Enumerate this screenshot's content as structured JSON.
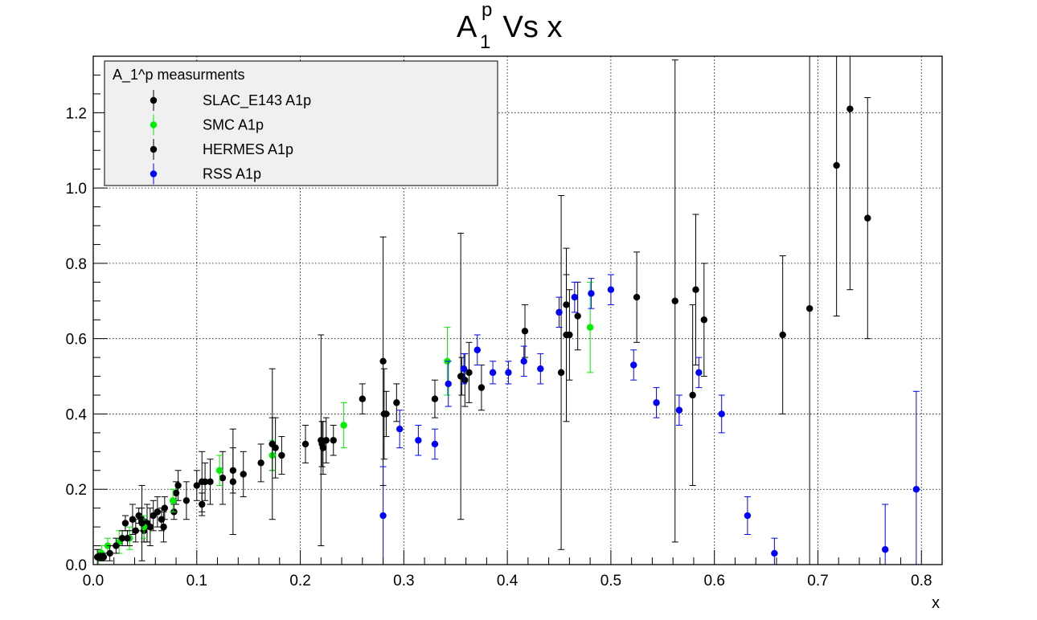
{
  "chart_data": {
    "type": "scatter",
    "title": {
      "base": "A",
      "sup": "p",
      "sub": "1",
      "rest": " Vs x"
    },
    "xlabel": "x",
    "ylabel": "",
    "xlim": [
      0.0,
      0.82
    ],
    "ylim": [
      0.0,
      1.35
    ],
    "x_ticks": [
      0.0,
      0.1,
      0.2,
      0.3,
      0.4,
      0.5,
      0.6,
      0.7,
      0.8
    ],
    "y_ticks": [
      0.0,
      0.2,
      0.4,
      0.6,
      0.8,
      1.0,
      1.2
    ],
    "x_tick_labels": [
      "0.0",
      "0.1",
      "0.2",
      "0.3",
      "0.4",
      "0.5",
      "0.6",
      "0.7",
      "0.8"
    ],
    "y_tick_labels": [
      "0.0",
      "0.2",
      "0.4",
      "0.6",
      "0.8",
      "1.0",
      "1.2"
    ],
    "grid": true,
    "legend": {
      "title": "A_1^p measurments",
      "position": "top-left"
    },
    "series": [
      {
        "name": "SLAC_E143 A1p",
        "color": "#000000",
        "points": [
          [
            0.031,
            0.11,
            0.02
          ],
          [
            0.035,
            0.07,
            0.02
          ],
          [
            0.038,
            0.12,
            0.04
          ],
          [
            0.041,
            0.09,
            0.03
          ],
          [
            0.044,
            0.13,
            0.02
          ],
          [
            0.047,
            0.12,
            0.03
          ],
          [
            0.049,
            0.09,
            0.03
          ],
          [
            0.052,
            0.11,
            0.05
          ],
          [
            0.055,
            0.1,
            0.05
          ],
          [
            0.058,
            0.13,
            0.04
          ],
          [
            0.062,
            0.14,
            0.04
          ],
          [
            0.066,
            0.12,
            0.03
          ],
          [
            0.069,
            0.15,
            0.03
          ],
          [
            0.078,
            0.14,
            0.02
          ],
          [
            0.08,
            0.19,
            0.03
          ],
          [
            0.082,
            0.21,
            0.04
          ],
          [
            0.09,
            0.17,
            0.05
          ],
          [
            0.1,
            0.21,
            0.04
          ],
          [
            0.105,
            0.16,
            0.03
          ],
          [
            0.108,
            0.22,
            0.05
          ],
          [
            0.113,
            0.22,
            0.06
          ],
          [
            0.125,
            0.23,
            0.07
          ],
          [
            0.135,
            0.25,
            0.06
          ],
          [
            0.145,
            0.24,
            0.06
          ],
          [
            0.162,
            0.27,
            0.05
          ],
          [
            0.173,
            0.32,
            0.07
          ],
          [
            0.176,
            0.31,
            0.08
          ],
          [
            0.182,
            0.29,
            0.05
          ],
          [
            0.205,
            0.32,
            0.05
          ],
          [
            0.221,
            0.32,
            0.06
          ],
          [
            0.225,
            0.33,
            0.06
          ],
          [
            0.232,
            0.33,
            0.04
          ],
          [
            0.26,
            0.44,
            0.04
          ],
          [
            0.283,
            0.4,
            0.06
          ],
          [
            0.293,
            0.43,
            0.05
          ],
          [
            0.33,
            0.44,
            0.05
          ],
          [
            0.356,
            0.5,
            0.05
          ],
          [
            0.359,
            0.49,
            0.07
          ],
          [
            0.363,
            0.51,
            0.08
          ],
          [
            0.375,
            0.47,
            0.06
          ],
          [
            0.417,
            0.62,
            0.07
          ],
          [
            0.457,
            0.69,
            0.08
          ],
          [
            0.46,
            0.61,
            0.12
          ],
          [
            0.468,
            0.66,
            0.09
          ],
          [
            0.525,
            0.71,
            0.12
          ],
          [
            0.59,
            0.65,
            0.15
          ]
        ]
      },
      {
        "name": "SMC A1p",
        "color": "#00ee00",
        "points": [
          [
            0.005,
            0.02,
            0.02
          ],
          [
            0.008,
            0.03,
            0.02
          ],
          [
            0.014,
            0.05,
            0.02
          ],
          [
            0.025,
            0.06,
            0.03
          ],
          [
            0.035,
            0.07,
            0.03
          ],
          [
            0.049,
            0.1,
            0.03
          ],
          [
            0.077,
            0.17,
            0.03
          ],
          [
            0.122,
            0.25,
            0.04
          ],
          [
            0.173,
            0.29,
            0.04
          ],
          [
            0.242,
            0.37,
            0.06
          ],
          [
            0.342,
            0.54,
            0.09
          ],
          [
            0.48,
            0.63,
            0.12
          ]
        ]
      },
      {
        "name": "HERMES A1p",
        "color": "#000000",
        "points": [
          [
            0.004,
            0.02,
            0.02
          ],
          [
            0.007,
            0.02,
            0.01
          ],
          [
            0.01,
            0.02,
            0.01
          ],
          [
            0.016,
            0.03,
            0.02
          ],
          [
            0.022,
            0.05,
            0.02
          ],
          [
            0.028,
            0.07,
            0.02
          ],
          [
            0.033,
            0.07,
            0.02
          ],
          [
            0.047,
            0.11,
            0.1
          ],
          [
            0.068,
            0.1,
            0.04
          ],
          [
            0.105,
            0.22,
            0.08
          ],
          [
            0.135,
            0.22,
            0.14
          ],
          [
            0.173,
            0.32,
            0.2
          ],
          [
            0.22,
            0.33,
            0.28
          ],
          [
            0.222,
            0.31,
            0.07
          ],
          [
            0.28,
            0.54,
            0.33
          ],
          [
            0.281,
            0.4,
            0.12
          ],
          [
            0.355,
            0.5,
            0.38
          ],
          [
            0.452,
            0.51,
            0.47
          ],
          [
            0.457,
            0.61,
            0.23
          ],
          [
            0.562,
            0.7,
            0.64
          ],
          [
            0.579,
            0.45,
            0.24
          ],
          [
            0.582,
            0.73,
            0.2
          ],
          [
            0.666,
            0.61,
            0.21
          ],
          [
            0.692,
            0.68,
            0.7
          ],
          [
            0.718,
            1.06,
            0.4
          ],
          [
            0.731,
            1.21,
            0.48
          ],
          [
            0.748,
            0.92,
            0.32
          ]
        ]
      },
      {
        "name": "RSS A1p",
        "color": "#0000ff",
        "points": [
          [
            0.28,
            0.13,
            0.13
          ],
          [
            0.296,
            0.36,
            0.05
          ],
          [
            0.314,
            0.33,
            0.04
          ],
          [
            0.33,
            0.32,
            0.04
          ],
          [
            0.343,
            0.48,
            0.06
          ],
          [
            0.358,
            0.52,
            0.04
          ],
          [
            0.371,
            0.57,
            0.04
          ],
          [
            0.386,
            0.51,
            0.03
          ],
          [
            0.401,
            0.51,
            0.03
          ],
          [
            0.416,
            0.54,
            0.04
          ],
          [
            0.432,
            0.52,
            0.04
          ],
          [
            0.45,
            0.67,
            0.04
          ],
          [
            0.465,
            0.71,
            0.04
          ],
          [
            0.481,
            0.72,
            0.04
          ],
          [
            0.5,
            0.73,
            0.04
          ],
          [
            0.522,
            0.53,
            0.04
          ],
          [
            0.544,
            0.43,
            0.04
          ],
          [
            0.566,
            0.41,
            0.04
          ],
          [
            0.585,
            0.51,
            0.04
          ],
          [
            0.607,
            0.4,
            0.05
          ],
          [
            0.632,
            0.13,
            0.05
          ],
          [
            0.658,
            0.03,
            0.04
          ],
          [
            0.765,
            0.04,
            0.12
          ],
          [
            0.795,
            0.2,
            0.26
          ]
        ]
      }
    ]
  }
}
